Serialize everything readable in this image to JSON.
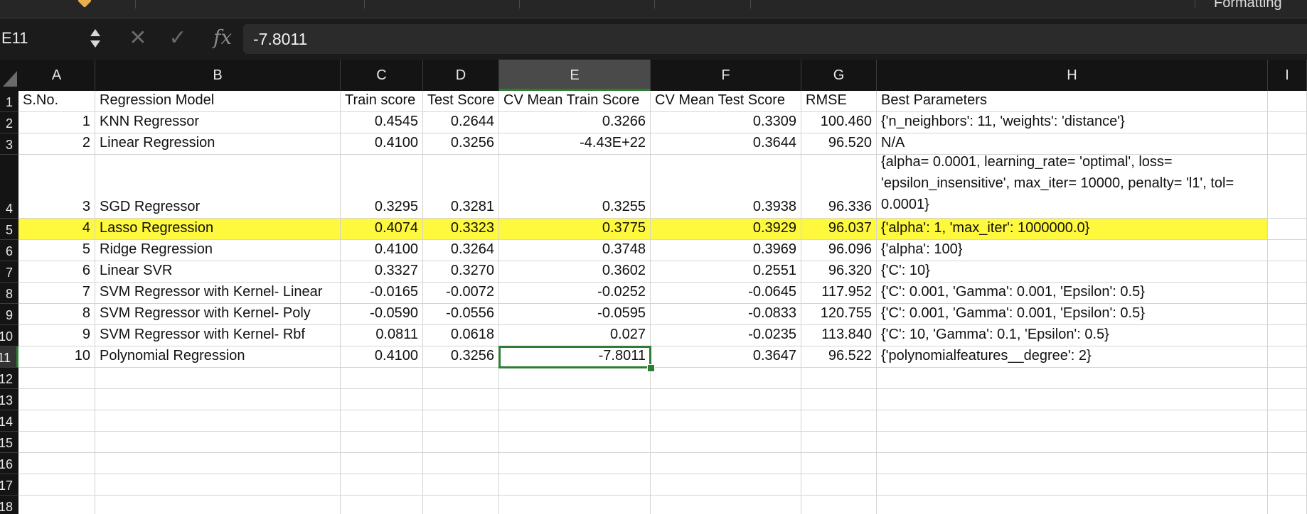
{
  "ribbon": {
    "formatting_label": "Formatting"
  },
  "formula_bar": {
    "name_box": "E11",
    "cancel_icon": "✕",
    "enter_icon": "✓",
    "fx_label": "fx",
    "value": "-7.8011"
  },
  "columns": [
    "A",
    "B",
    "C",
    "D",
    "E",
    "F",
    "G",
    "H",
    "I"
  ],
  "selected_column": "E",
  "selected_row": "11",
  "row_numbers": [
    "1",
    "2",
    "3",
    "4",
    "5",
    "6",
    "7",
    "8",
    "9",
    "10",
    "11",
    "12",
    "13",
    "14",
    "15",
    "16",
    "17",
    "18"
  ],
  "header_row": [
    "S.No.",
    "Regression Model",
    "Train score",
    "Test Score",
    "CV Mean Train Score",
    "CV Mean Test Score",
    "RMSE",
    "Best Parameters"
  ],
  "rows": [
    [
      "1",
      "KNN Regressor",
      "0.4545",
      "0.2644",
      "0.3266",
      "0.3309",
      "100.460",
      "{'n_neighbors': 11, 'weights': 'distance'}"
    ],
    [
      "2",
      "Linear Regression",
      "0.4100",
      "0.3256",
      "-4.43E+22",
      "0.3644",
      "96.520",
      "N/A"
    ],
    [
      "3",
      "SGD Regressor",
      "0.3295",
      "0.3281",
      "0.3255",
      "0.3938",
      "96.336",
      "{alpha= 0.0001, learning_rate= 'optimal', loss= 'epsilon_insensitive', max_iter= 10000, penalty= 'l1', tol= 0.0001}"
    ],
    [
      "4",
      "Lasso Regression",
      "0.4074",
      "0.3323",
      "0.3775",
      "0.3929",
      "96.037",
      "{'alpha': 1, 'max_iter': 1000000.0}"
    ],
    [
      "5",
      "Ridge Regression",
      "0.4100",
      "0.3264",
      "0.3748",
      "0.3969",
      "96.096",
      "{'alpha': 100}"
    ],
    [
      "6",
      "Linear SVR",
      "0.3327",
      "0.3270",
      "0.3602",
      "0.2551",
      "96.320",
      "{'C': 10}"
    ],
    [
      "7",
      "SVM Regressor with Kernel- Linear",
      "-0.0165",
      "-0.0072",
      "-0.0252",
      "-0.0645",
      "117.952",
      "{'C': 0.001, 'Gamma': 0.001, 'Epsilon': 0.5}"
    ],
    [
      "8",
      "SVM Regressor with Kernel- Poly",
      "-0.0590",
      "-0.0556",
      "-0.0595",
      "-0.0833",
      "120.755",
      "{'C': 0.001, 'Gamma': 0.001, 'Epsilon': 0.5}"
    ],
    [
      "9",
      "SVM Regressor with Kernel- Rbf",
      "0.0811",
      "0.0618",
      "0.027",
      "-0.0235",
      "113.840",
      "{'C': 10, 'Gamma': 0.1, 'Epsilon': 0.5}"
    ],
    [
      "10",
      "Polynomial Regression",
      "0.4100",
      "0.3256",
      "-7.8011",
      "0.3647",
      "96.522",
      "{'polynomialfeatures__degree': 2}"
    ]
  ],
  "highlight_row": "5",
  "highlight_color": "#fff93d",
  "selection_color": "#2e7d32",
  "active_cell": "E11"
}
